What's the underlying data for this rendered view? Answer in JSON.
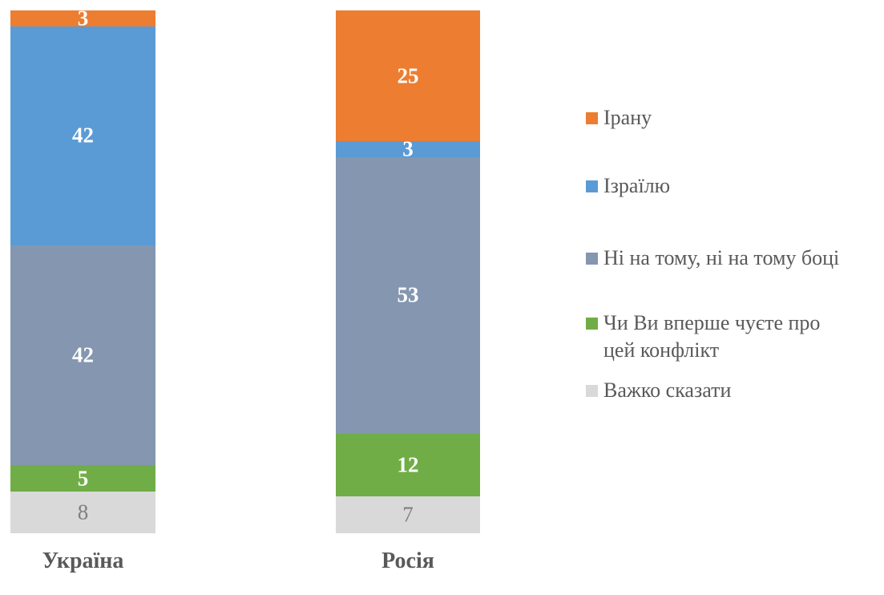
{
  "chart_data": {
    "type": "bar",
    "subtype": "stacked-column-100-percent",
    "title": "",
    "xlabel": "",
    "ylabel": "",
    "ylim": [
      0,
      100
    ],
    "grid": false,
    "legend_position": "right",
    "data_labels": true,
    "background_color": "#FFFFFF",
    "axis_text_color": "#595959",
    "categories": [
      "Україна",
      "Росія"
    ],
    "series": [
      {
        "name": "Ірану",
        "color": "#ED7D31",
        "values": [
          3,
          25
        ],
        "label_color": "#FFFFFF",
        "label_bold": true
      },
      {
        "name": "Ізраїлю",
        "color": "#5B9BD5",
        "values": [
          42,
          3
        ],
        "label_color": "#FFFFFF",
        "label_bold": true
      },
      {
        "name": "Ні на тому, ні на тому боці",
        "color": "#8496B0",
        "values": [
          42,
          53
        ],
        "label_color": "#FFFFFF",
        "label_bold": true
      },
      {
        "name": "Чи Ви вперше чуєте про цей конфлікт",
        "legend_label": "Чи Ви вперше чуєте про\nцей конфлікт",
        "color": "#70AD47",
        "values": [
          5,
          12
        ],
        "label_color": "#FFFFFF",
        "label_bold": true
      },
      {
        "name": "Важко сказати",
        "color": "#D9D9D9",
        "values": [
          8,
          7
        ],
        "label_color": "#7F7F7F",
        "label_bold": false
      }
    ]
  }
}
